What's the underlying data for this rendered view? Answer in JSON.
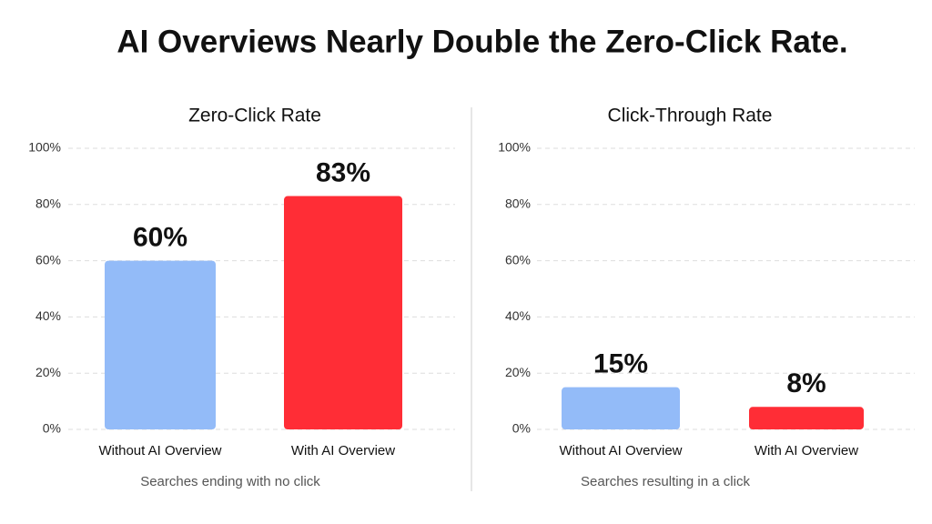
{
  "title": "AI Overviews Nearly Double the Zero-Click Rate.",
  "chart_data": [
    {
      "type": "bar",
      "title": "Zero-Click Rate",
      "x_label": "Searches ending with no click",
      "categories": [
        "Without AI Overview",
        "With AI Overview"
      ],
      "values": [
        60,
        83
      ],
      "value_labels": [
        "60%",
        "83%"
      ],
      "colors": [
        "#93bbf8",
        "#ff2d36"
      ],
      "ylim": [
        0,
        100
      ],
      "yticks": [
        {
          "value": 0,
          "label": "0%"
        },
        {
          "value": 20,
          "label": "20%"
        },
        {
          "value": 40,
          "label": "40%"
        },
        {
          "value": 60,
          "label": "60%"
        },
        {
          "value": 80,
          "label": "80%"
        },
        {
          "value": 100,
          "label": "100%"
        }
      ],
      "grid": true
    },
    {
      "type": "bar",
      "title": "Click-Through Rate",
      "x_label": "Searches resulting in a click",
      "categories": [
        "Without AI Overview",
        "With AI Overview"
      ],
      "values": [
        15,
        8
      ],
      "value_labels": [
        "15%",
        "8%"
      ],
      "colors": [
        "#93bbf8",
        "#ff2d36"
      ],
      "ylim": [
        0,
        100
      ],
      "yticks": [
        {
          "value": 0,
          "label": "0%"
        },
        {
          "value": 20,
          "label": "20%"
        },
        {
          "value": 40,
          "label": "40%"
        },
        {
          "value": 60,
          "label": "60%"
        },
        {
          "value": 80,
          "label": "80%"
        },
        {
          "value": 100,
          "label": "100%"
        }
      ],
      "grid": true
    }
  ]
}
